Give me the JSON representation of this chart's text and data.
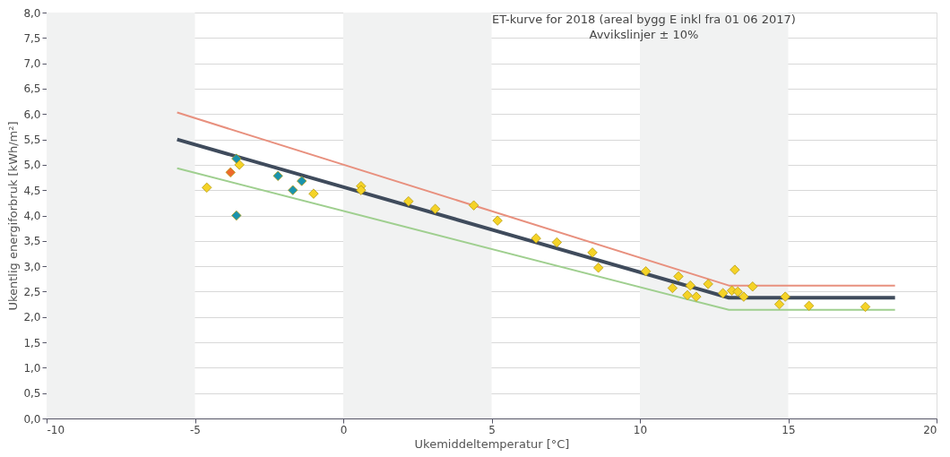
{
  "chart_data": {
    "type": "scatter",
    "title": "ET-kurve for 2018 (areal bygg E inkl fra 01 06 2017)",
    "subtitle": "Avvikslinjer ± 10%",
    "xlabel": "Ukemiddeltemperatur [°C]",
    "ylabel": "Ukentlig energiforbruk [kWh/m²]",
    "xlim": [
      -10,
      20
    ],
    "xticks": [
      -10,
      -5,
      0,
      5,
      10,
      15,
      20
    ],
    "ylim": [
      0,
      8
    ],
    "yticks": [
      {
        "value": 0,
        "label": "0,0"
      },
      {
        "value": 0.5,
        "label": "0,5"
      },
      {
        "value": 1,
        "label": "1,0"
      },
      {
        "value": 1.5,
        "label": "1,5"
      },
      {
        "value": 2,
        "label": "2,0"
      },
      {
        "value": 2.5,
        "label": "2,5"
      },
      {
        "value": 3,
        "label": "3,0"
      },
      {
        "value": 3.5,
        "label": "3,5"
      },
      {
        "value": 4,
        "label": "4,0"
      },
      {
        "value": 4.5,
        "label": "4,5"
      },
      {
        "value": 5,
        "label": "5,0"
      },
      {
        "value": 5.5,
        "label": "5,5"
      },
      {
        "value": 6,
        "label": "6,0"
      },
      {
        "value": 6.5,
        "label": "6,5"
      },
      {
        "value": 7,
        "label": "7,0"
      },
      {
        "value": 7.5,
        "label": "7,5"
      },
      {
        "value": 8,
        "label": "8,0"
      }
    ],
    "grid": "y",
    "marker": "diamond",
    "line_style": "solid",
    "bands": [
      {
        "axis": "x",
        "from": -10,
        "to": -5,
        "color": "#f1f2f2"
      },
      {
        "axis": "x",
        "from": 0,
        "to": 5,
        "color": "#f1f2f2"
      },
      {
        "axis": "x",
        "from": 10,
        "to": 15,
        "color": "#f1f2f2"
      }
    ],
    "series": [
      {
        "type": "line",
        "color": "#e8907e",
        "marker": "none",
        "x": [
          -5.6,
          13,
          18.6
        ],
        "values": [
          6.03,
          2.62,
          2.62
        ]
      },
      {
        "type": "line",
        "color": "#9fcf8f",
        "marker": "none",
        "x": [
          -5.6,
          13,
          18.6
        ],
        "values": [
          4.93,
          2.14,
          2.14
        ]
      },
      {
        "type": "line",
        "color": "#3f4b5c",
        "marker": "none",
        "x": [
          -5.6,
          13,
          18.6
        ],
        "values": [
          5.5,
          2.38,
          2.38
        ]
      },
      {
        "type": "scatter",
        "color": "#f5d327",
        "x": [
          -4.6,
          -3.5,
          -1.0,
          0.6,
          0.6,
          2.2,
          3.1,
          4.4,
          5.2,
          6.5,
          7.2,
          8.4,
          8.6,
          10.2,
          11.1,
          11.3,
          11.6,
          11.7,
          11.9,
          12.3,
          12.8,
          13.1,
          13.2,
          13.3,
          13.5,
          13.8,
          14.7,
          14.9,
          15.7,
          17.6
        ],
        "values": [
          4.55,
          5.0,
          4.43,
          4.58,
          4.5,
          4.28,
          4.13,
          4.2,
          3.9,
          3.55,
          3.47,
          3.27,
          2.97,
          2.9,
          2.57,
          2.8,
          2.43,
          2.62,
          2.4,
          2.65,
          2.47,
          2.52,
          2.93,
          2.5,
          2.4,
          2.6,
          2.25,
          2.4,
          2.22,
          2.2
        ]
      },
      {
        "type": "scatter",
        "color": "#1a93ad",
        "x": [
          -3.6,
          -3.6,
          -2.2,
          -1.7,
          -1.4
        ],
        "values": [
          5.12,
          4.0,
          4.78,
          4.5,
          4.68
        ]
      },
      {
        "type": "scatter",
        "color": "#ee6a2c",
        "x": [
          -3.8
        ],
        "values": [
          4.85
        ]
      }
    ]
  }
}
